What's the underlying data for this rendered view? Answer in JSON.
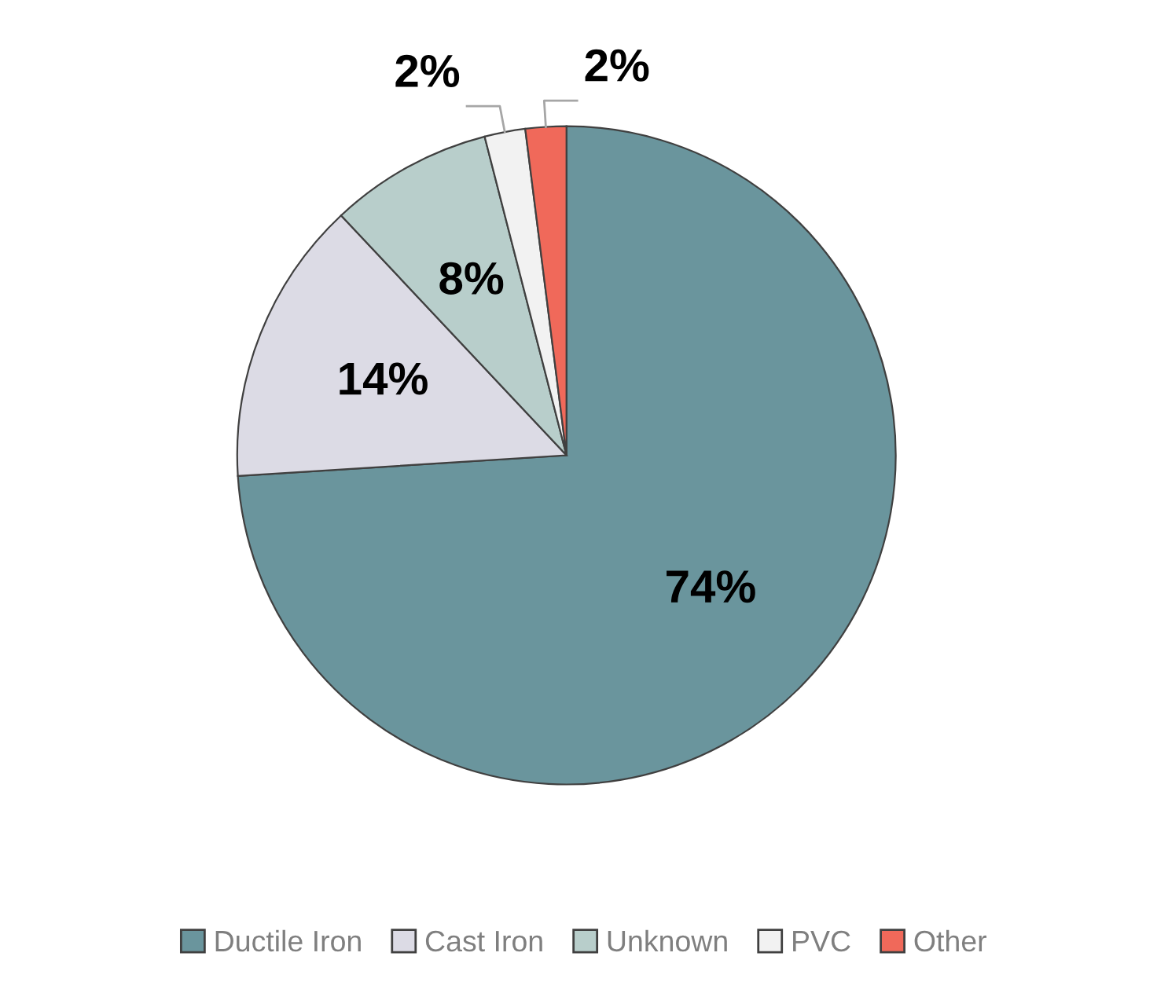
{
  "chart_data": {
    "type": "pie",
    "categories": [
      "Ductile Iron",
      "Cast Iron",
      "Unknown",
      "PVC",
      "Other"
    ],
    "values": [
      74,
      14,
      8,
      2,
      2
    ],
    "colors": [
      "#6a959d",
      "#dcdbe5",
      "#b8cecb",
      "#f2f2f2",
      "#f0695a"
    ],
    "value_labels": [
      "74%",
      "14%",
      "8%",
      "2%",
      "2%"
    ],
    "legend": "bottom"
  }
}
